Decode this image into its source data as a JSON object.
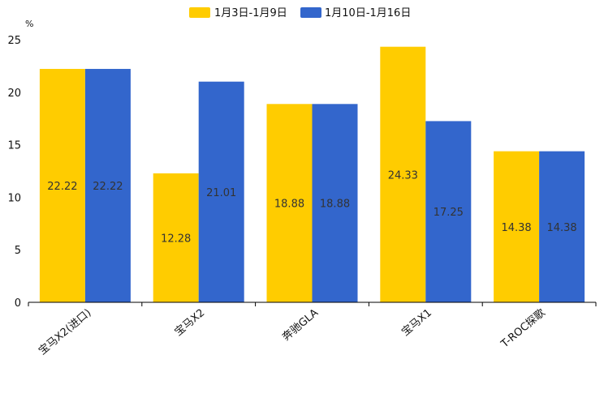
{
  "chart_data": {
    "type": "bar",
    "title": "",
    "ylabel": "%",
    "xlabel": "",
    "ylim": [
      0,
      25
    ],
    "yticks": [
      0,
      5,
      10,
      15,
      20,
      25
    ],
    "grid": false,
    "legend_position": "top-center",
    "categories": [
      "宝马X2(进口)",
      "宝马X2",
      "奔驰GLA",
      "宝马X1",
      "T-ROC探歌"
    ],
    "series": [
      {
        "name": "1月3日-1月9日",
        "color": "#FFCC00",
        "values": [
          22.22,
          12.28,
          18.88,
          24.33,
          14.38
        ]
      },
      {
        "name": "1月10日-1月16日",
        "color": "#3366CC",
        "values": [
          22.22,
          21.01,
          18.88,
          17.25,
          14.38
        ]
      }
    ]
  }
}
